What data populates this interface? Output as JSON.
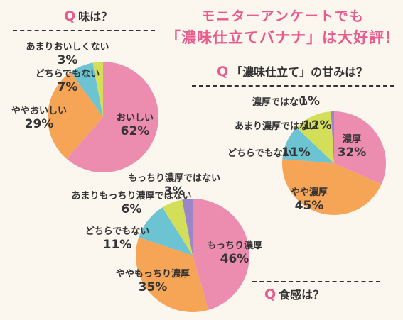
{
  "headline": {
    "line1": "モニターアンケートでも",
    "line2": "「濃味仕立てバナナ」は大好評！"
  },
  "colors": {
    "pink": "#ec8db0",
    "orange": "#f6a557",
    "blue": "#6cc3d1",
    "lime": "#d3df58",
    "purple": "#9b86c7",
    "accent": "#ea5a8c"
  },
  "questions": {
    "taste": {
      "q": "Q",
      "text": "味は？"
    },
    "sweet": {
      "q": "Q",
      "text": "「濃味仕立て」の甘みは？"
    },
    "texture": {
      "q": "Q",
      "text": "食感は？"
    }
  },
  "chart_data": [
    {
      "type": "pie",
      "title": "味は？",
      "labels": [
        "おいしい",
        "ややおいしい",
        "どちらでもない",
        "あまりおいしくない"
      ],
      "values": [
        62,
        29,
        7,
        3
      ],
      "colors": [
        "#ec8db0",
        "#f6a557",
        "#6cc3d1",
        "#d3df58"
      ],
      "display": [
        "おいしい 62%",
        "ややおいしい 29%",
        "どちらでもない 7%",
        "あまりおいしくない 3%"
      ]
    },
    {
      "type": "pie",
      "title": "「濃味仕立て」の甘みは？",
      "labels": [
        "濃厚",
        "やや濃厚",
        "どちらでもない",
        "あまり濃厚ではない",
        "濃厚ではない"
      ],
      "values": [
        32,
        45,
        11,
        12,
        1
      ],
      "colors": [
        "#ec8db0",
        "#f6a557",
        "#6cc3d1",
        "#d3df58",
        "#9b86c7"
      ],
      "display": [
        "濃厚 32%",
        "やや濃厚 45%",
        "どちらでもない 11%",
        "あまり濃厚ではない 12%",
        "濃厚ではない 1%"
      ]
    },
    {
      "type": "pie",
      "title": "食感は？",
      "labels": [
        "もっちり濃厚",
        "ややもっちり濃厚",
        "どちらでもない",
        "あまりもっちり濃厚ではない",
        "もっちり濃厚ではない"
      ],
      "values": [
        46,
        35,
        11,
        6,
        3
      ],
      "colors": [
        "#ec8db0",
        "#f6a557",
        "#6cc3d1",
        "#d3df58",
        "#9b86c7"
      ],
      "display": [
        "もっちり濃厚 46%",
        "ややもっちり濃厚 35%",
        "どちらでもない 11%",
        "あまりもっちり濃厚ではない 6%",
        "もっちり濃厚ではない 3%"
      ]
    }
  ]
}
